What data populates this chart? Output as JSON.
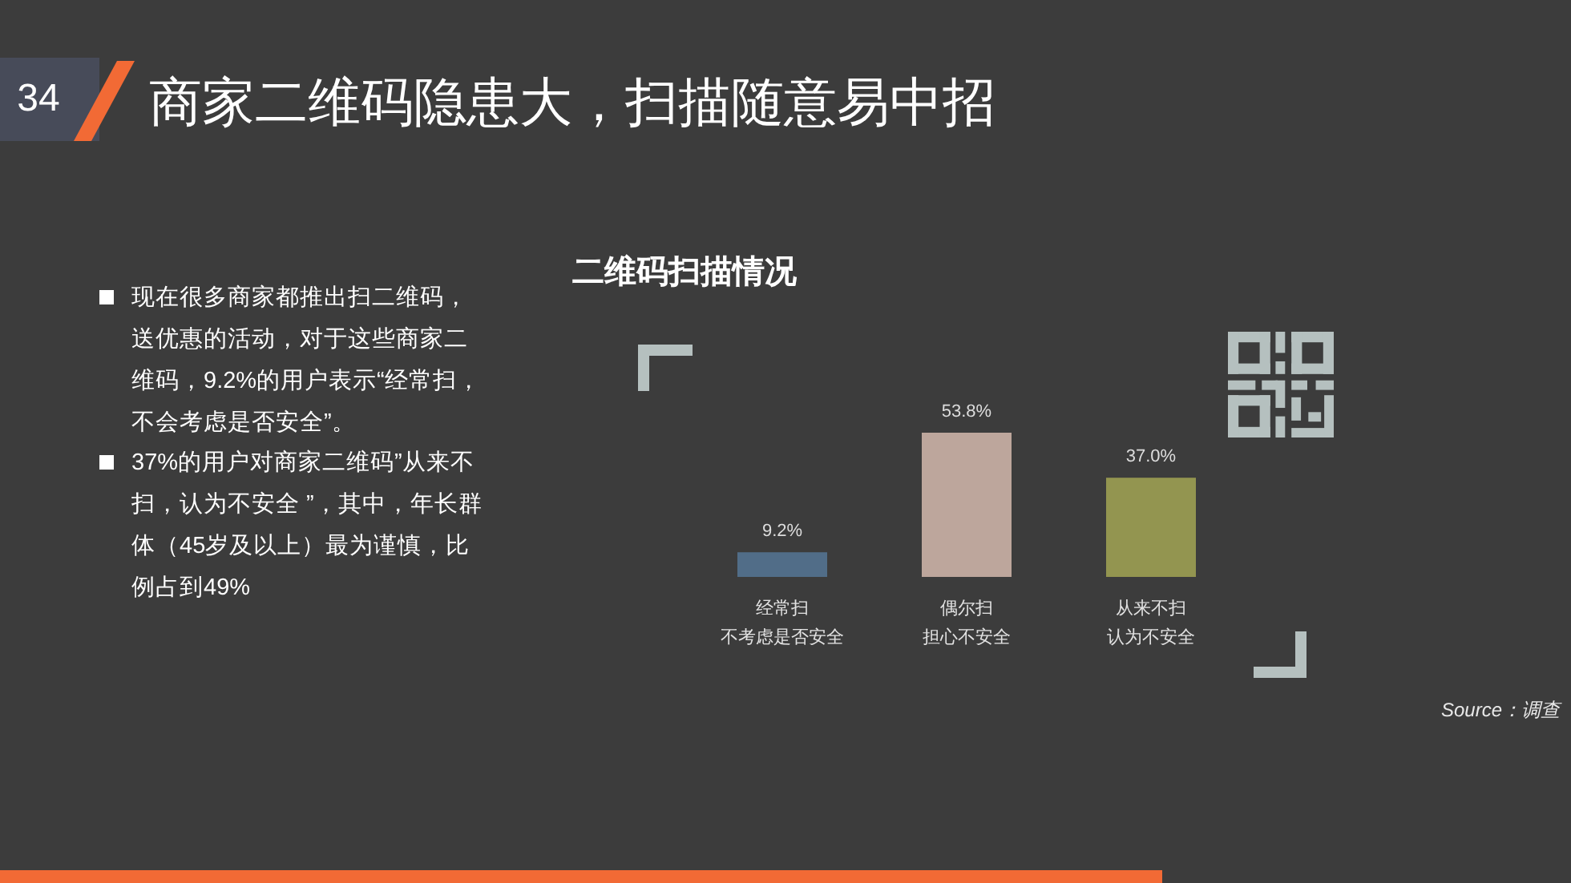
{
  "chart_data": {
    "type": "bar",
    "title": "二维码扫描情况",
    "categories": [
      "经常扫不考虑是否安全",
      "偶尔扫担心不安全",
      "从来不扫认为不安全"
    ],
    "values": [
      9.2,
      53.8,
      37.0
    ],
    "colors": [
      "#516d88",
      "#bda69c",
      "#939550"
    ],
    "value_labels": [
      "9.2%",
      "53.8%",
      "37.0%"
    ],
    "annotations": [
      "34",
      "商家二维码隐患大，扫描随意易中招",
      "现在很多商家都推出扫二维码，送优惠的活动，对于这些商家二维码，9.2%的用户表示“经常扫，不会考虑是否安全”。",
      "37%的用户对商家二维码”从来不扫，认为不安全 ”，其中，年长群体（45岁及以上）最为谨慎，比例占到49%",
      "Source：调查"
    ]
  }
}
